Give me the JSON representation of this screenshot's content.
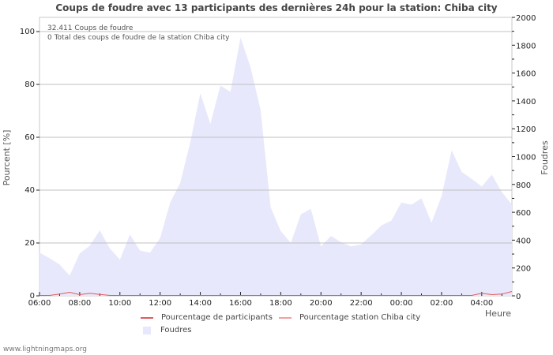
{
  "title": "Coups de foudre avec 13 participants des dernières 24h pour la station: Chiba city",
  "info": {
    "line1": "32.411  Coups de foudre",
    "line2": "0 Total des coups de foudre de la station Chiba city"
  },
  "axes": {
    "left_label": "Pourcent   [%]",
    "right_label": "Foudres",
    "x_label": "Heure",
    "left_ticks": [
      "0",
      "20",
      "40",
      "60",
      "80",
      "100"
    ],
    "right_ticks": [
      "0",
      "200",
      "400",
      "600",
      "800",
      "1000",
      "1200",
      "1400",
      "1600",
      "1800",
      "2000"
    ],
    "x_ticks": [
      "06:00",
      "08:00",
      "10:00",
      "12:00",
      "14:00",
      "16:00",
      "18:00",
      "20:00",
      "22:00",
      "00:00",
      "02:00",
      "04:00"
    ]
  },
  "legend": {
    "participants": "Pourcentage de participants",
    "station": "Pourcentage station Chiba city",
    "strikes": "Foudres"
  },
  "colors": {
    "participants": "#e05a5a",
    "station": "#f4a0a0",
    "strikes_fill": "#e8e8fc",
    "grid": "#c0c0c0"
  },
  "footer": "www.lightningmaps.org",
  "chart_data": {
    "type": "area",
    "title": "Coups de foudre avec 13 participants des dernières 24h pour la station: Chiba city",
    "xlabel": "Heure",
    "ylabel": "Pourcent [%]",
    "y2label": "Foudres",
    "ylim": [
      0,
      100
    ],
    "y2lim": [
      0,
      2000
    ],
    "grid": true,
    "legend_position": "bottom",
    "x": [
      "06:00",
      "06:30",
      "07:00",
      "07:30",
      "08:00",
      "08:30",
      "09:00",
      "09:30",
      "10:00",
      "10:30",
      "11:00",
      "11:30",
      "12:00",
      "12:30",
      "13:00",
      "13:30",
      "14:00",
      "14:30",
      "15:00",
      "15:30",
      "16:00",
      "16:30",
      "17:00",
      "17:30",
      "18:00",
      "18:30",
      "19:00",
      "19:30",
      "20:00",
      "20:30",
      "21:00",
      "21:30",
      "22:00",
      "22:30",
      "23:00",
      "23:30",
      "00:00",
      "00:30",
      "01:00",
      "01:30",
      "02:00",
      "02:30",
      "03:00",
      "03:30",
      "04:00",
      "04:30",
      "05:00",
      "05:30"
    ],
    "series": [
      {
        "name": "Foudres",
        "axis": "right",
        "values": [
          310,
          270,
          225,
          145,
          305,
          360,
          470,
          340,
          260,
          440,
          325,
          310,
          415,
          670,
          810,
          1105,
          1455,
          1235,
          1510,
          1465,
          1855,
          1640,
          1335,
          635,
          465,
          380,
          585,
          625,
          355,
          430,
          385,
          355,
          370,
          435,
          505,
          540,
          670,
          655,
          700,
          525,
          715,
          1045,
          890,
          840,
          785,
          870,
          745,
          655
        ]
      },
      {
        "name": "Pourcentage de participants",
        "axis": "left",
        "values": [
          0,
          0,
          0.5,
          1.2,
          0.3,
          0.8,
          0.4,
          0,
          0,
          0,
          0,
          0,
          0,
          0,
          0,
          0,
          0,
          0,
          0,
          0,
          0,
          0,
          0,
          0,
          0,
          0,
          0,
          0,
          0,
          0,
          0,
          0,
          0,
          0,
          0,
          0,
          0,
          0,
          0,
          0,
          0,
          0,
          0,
          0,
          0.8,
          0.3,
          0.5,
          1.5
        ]
      },
      {
        "name": "Pourcentage station Chiba city",
        "axis": "left",
        "values": [
          0,
          0,
          0,
          0,
          0,
          0,
          0,
          0,
          0,
          0,
          0,
          0,
          0,
          0,
          0,
          0,
          0,
          0,
          0,
          0,
          0,
          0,
          0,
          0,
          0,
          0,
          0,
          0,
          0,
          0,
          0,
          0,
          0,
          0,
          0,
          0,
          0,
          0,
          0,
          0,
          0,
          0,
          0,
          0,
          0,
          0,
          0,
          0
        ]
      }
    ]
  }
}
